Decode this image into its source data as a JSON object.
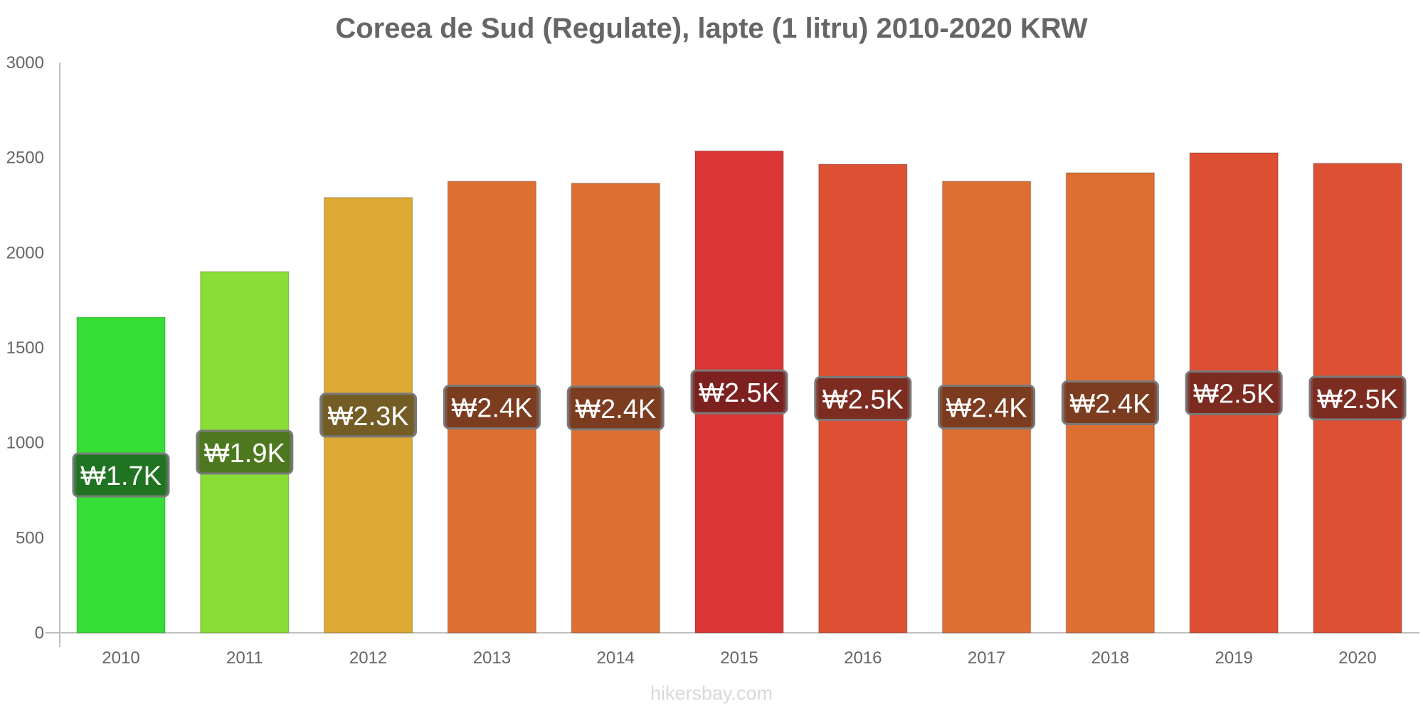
{
  "title": "Coreea de Sud (Regulate), lapte (1 litru) 2010-2020 KRW",
  "footer": "hikersbay.com",
  "chart_data": {
    "type": "bar",
    "title": "Coreea de Sud (Regulate), lapte (1 litru) 2010-2020 KRW",
    "xlabel": "",
    "ylabel": "",
    "ylim": [
      0,
      3000
    ],
    "yticks": [
      "0",
      "500",
      "1000",
      "1500",
      "2000",
      "2500",
      "3000"
    ],
    "grid": false,
    "legend": "none",
    "categories": [
      "2010",
      "2011",
      "2012",
      "2013",
      "2014",
      "2015",
      "2016",
      "2017",
      "2018",
      "2019",
      "2020"
    ],
    "values": [
      1660,
      1900,
      2290,
      2375,
      2365,
      2535,
      2465,
      2375,
      2420,
      2525,
      2470
    ],
    "data_labels": [
      "₩1.7K",
      "₩1.9K",
      "₩2.3K",
      "₩2.4K",
      "₩2.4K",
      "₩2.5K",
      "₩2.5K",
      "₩2.4K",
      "₩2.4K",
      "₩2.5K",
      "₩2.5K"
    ],
    "bar_colors": [
      "#35de35",
      "#89de35",
      "#dcaa35",
      "#de6f33",
      "#de6f33",
      "#dc3535",
      "#dd5033",
      "#de6f33",
      "#de6f33",
      "#dd4f33",
      "#dd5033"
    ],
    "label_box_colors": [
      "#1e641e",
      "#456a1e",
      "#645223",
      "#6d361e",
      "#6d361e",
      "#6e1e1e",
      "#6e271e",
      "#6d361e",
      "#6d361e",
      "#6e271e",
      "#6e271e"
    ]
  }
}
